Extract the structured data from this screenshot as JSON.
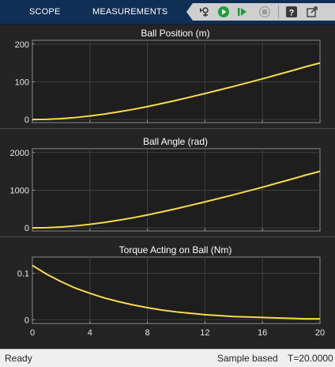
{
  "toolbar": {
    "tabs": [
      {
        "label": "SCOPE"
      },
      {
        "label": "MEASUREMENTS"
      }
    ],
    "buttons": [
      "step-back-icon",
      "run-icon",
      "step-forward-icon",
      "stop-icon",
      "help-icon",
      "undock-icon"
    ],
    "colors": {
      "bar": "#0f2f55",
      "run": "#1f9e3a",
      "controls": "#cfcfcf"
    }
  },
  "status": {
    "left": "Ready",
    "mode": "Sample based",
    "time": "T=20.0000"
  },
  "chart_data": [
    {
      "type": "line",
      "title": "Ball Position (m)",
      "xlim": [
        0,
        20
      ],
      "ylim": [
        -8,
        210
      ],
      "yticks": [
        0,
        100,
        200
      ],
      "yticklabels": [
        "0",
        "100",
        "200"
      ],
      "xticks": [
        0,
        4,
        8,
        12,
        16,
        20
      ],
      "xticklabels": [],
      "grid": true,
      "series": [
        {
          "color": "#f5dc4b",
          "x": [
            0,
            1,
            2,
            3,
            4,
            5,
            6,
            7,
            8,
            9,
            10,
            11,
            12,
            13,
            14,
            15,
            16,
            17,
            18,
            19,
            20
          ],
          "y": [
            0,
            0.6,
            2.5,
            5.5,
            9.5,
            14.5,
            20.5,
            27,
            34.5,
            42.5,
            51,
            60,
            69,
            78.5,
            88,
            98,
            108,
            118.5,
            129,
            140,
            150
          ]
        }
      ]
    },
    {
      "type": "line",
      "title": "Ball Angle (rad)",
      "xlim": [
        0,
        20
      ],
      "ylim": [
        -80,
        2100
      ],
      "yticks": [
        0,
        1000,
        2000
      ],
      "yticklabels": [
        "0",
        "1000",
        "2000"
      ],
      "xticks": [
        0,
        4,
        8,
        12,
        16,
        20
      ],
      "xticklabels": [],
      "grid": true,
      "series": [
        {
          "color": "#f5dc4b",
          "x": [
            0,
            1,
            2,
            3,
            4,
            5,
            6,
            7,
            8,
            9,
            10,
            11,
            12,
            13,
            14,
            15,
            16,
            17,
            18,
            19,
            20
          ],
          "y": [
            0,
            6,
            25,
            55,
            95,
            145,
            205,
            270,
            345,
            425,
            510,
            600,
            690,
            785,
            880,
            980,
            1080,
            1185,
            1290,
            1400,
            1500
          ]
        }
      ]
    },
    {
      "type": "line",
      "title": "Torque Acting on Ball (Nm)",
      "xlim": [
        0,
        20
      ],
      "ylim": [
        -0.008,
        0.135
      ],
      "yticks": [
        0,
        0.1
      ],
      "yticklabels": [
        "0",
        "0.1"
      ],
      "xticks": [
        0,
        4,
        8,
        12,
        16,
        20
      ],
      "xticklabels": [
        "0",
        "4",
        "8",
        "12",
        "16",
        "20"
      ],
      "grid": true,
      "series": [
        {
          "color": "#f5dc4b",
          "x": [
            0,
            1,
            2,
            3,
            4,
            5,
            6,
            7,
            8,
            9,
            10,
            11,
            12,
            13,
            14,
            15,
            16,
            17,
            18,
            19,
            20
          ],
          "y": [
            0.117,
            0.098,
            0.082,
            0.068,
            0.057,
            0.047,
            0.039,
            0.032,
            0.026,
            0.021,
            0.017,
            0.014,
            0.011,
            0.009,
            0.007,
            0.006,
            0.005,
            0.004,
            0.003,
            0.002,
            0.002
          ]
        }
      ]
    }
  ]
}
